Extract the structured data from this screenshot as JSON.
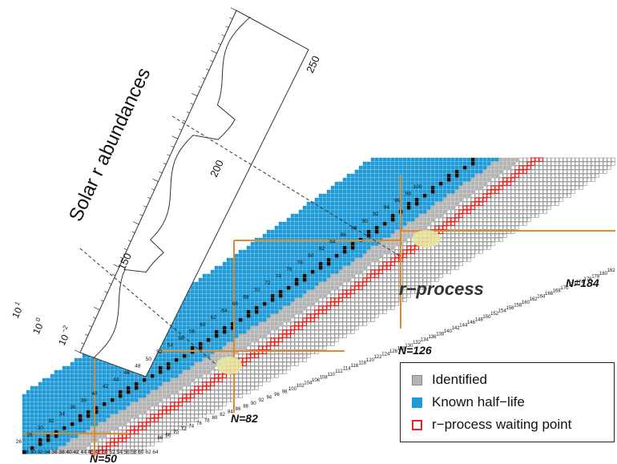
{
  "abundance_plot": {
    "title": "Solar r abundances",
    "mass_ticks": [
      "150",
      "200",
      "250"
    ],
    "log_ticks": [
      "10",
      "10",
      "10"
    ],
    "log_exponents": [
      "1",
      "0",
      "−2"
    ]
  },
  "chart": {
    "magic_labels": [
      "N=50",
      "N=82",
      "N=126",
      "N=184"
    ],
    "process_label": "r−process",
    "z_labels": [
      "26",
      "28",
      "30",
      "32",
      "34",
      "36",
      "38",
      "40",
      "42",
      "44",
      "46",
      "48",
      "50",
      "52",
      "54",
      "56",
      "58",
      "60",
      "62",
      "64",
      "66",
      "68",
      "70",
      "72",
      "74",
      "76",
      "78",
      "80",
      "82",
      "84",
      "86",
      "88",
      "90",
      "92",
      "94",
      "96",
      "98",
      "100"
    ],
    "n_labels_bottom": [
      "28",
      "30",
      "32",
      "34",
      "36",
      "38",
      "40",
      "42",
      "44",
      "46",
      "48",
      "50",
      "52",
      "54",
      "56",
      "58",
      "60",
      "62",
      "64"
    ],
    "n_labels_edge": [
      "66",
      "68",
      "70",
      "72",
      "74",
      "76",
      "78",
      "80",
      "82",
      "84",
      "86",
      "88",
      "90",
      "92",
      "94",
      "96",
      "98",
      "100",
      "102",
      "104",
      "106",
      "108",
      "110",
      "112",
      "114",
      "116",
      "118",
      "120",
      "122",
      "124",
      "126",
      "128",
      "130",
      "132",
      "134",
      "136",
      "138",
      "140",
      "142",
      "144",
      "146",
      "148",
      "150",
      "152",
      "154",
      "156",
      "158",
      "160",
      "162",
      "164",
      "166",
      "168",
      "170",
      "172",
      "174",
      "176",
      "178",
      "180",
      "182"
    ]
  },
  "legend": {
    "items": [
      {
        "label": "Identified",
        "color": "#b4b4b4",
        "kind": "fill"
      },
      {
        "label": "Known half−life",
        "color": "#1e9ad6",
        "kind": "fill"
      },
      {
        "label": "r−process waiting point",
        "color": "#e8231c",
        "kind": "outline"
      }
    ]
  },
  "colors": {
    "known": "#1e9ad6",
    "identified": "#b4b4b4",
    "stable": "#111111",
    "rprocess": "#e8231c",
    "magic_line": "#e08a2a",
    "highlight": "#e6e6a0"
  }
}
